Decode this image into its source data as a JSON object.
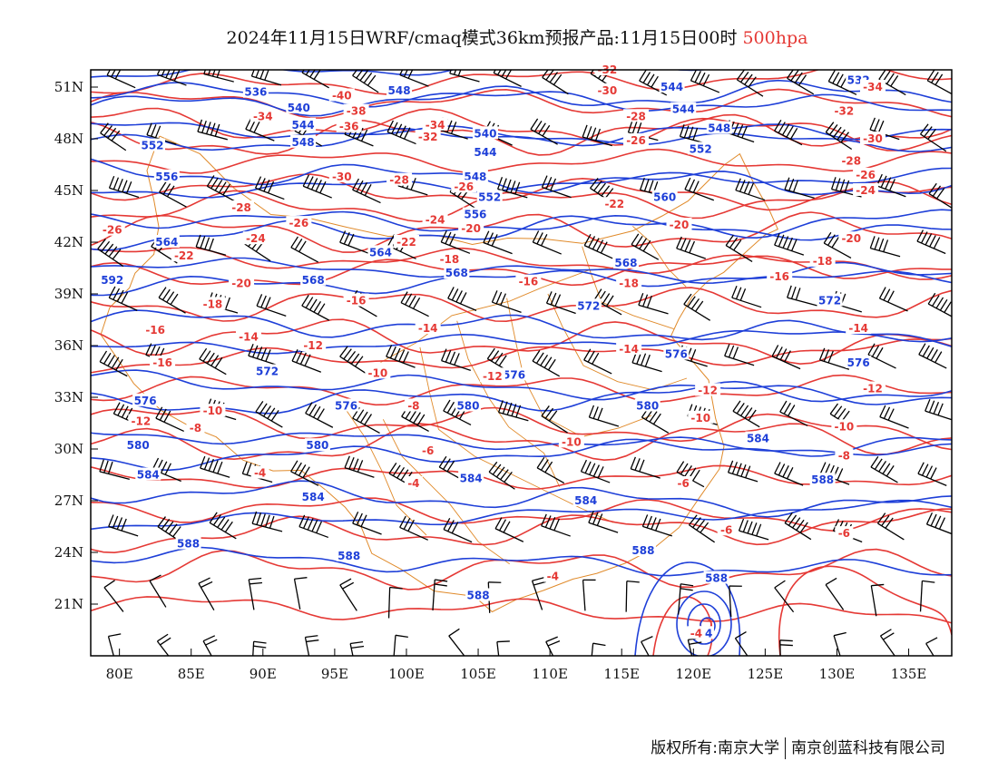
{
  "title": {
    "main": "2024年11月15日WRF/cmaq模式36km预报产品:11月15日00时",
    "level": "500hpa"
  },
  "colors": {
    "height": "#1e3fd8",
    "temp": "#e53935",
    "border": "#e08a2a",
    "wind": "#000000",
    "level_text": "#e53935"
  },
  "axes": {
    "lon_labels": [
      "80E",
      "85E",
      "90E",
      "95E",
      "100E",
      "105E",
      "110E",
      "115E",
      "120E",
      "125E",
      "130E",
      "135E"
    ],
    "lon_values": [
      80,
      85,
      90,
      95,
      100,
      105,
      110,
      115,
      120,
      125,
      130,
      135
    ],
    "lat_labels": [
      "51N",
      "48N",
      "45N",
      "42N",
      "39N",
      "36N",
      "33N",
      "30N",
      "27N",
      "24N",
      "21N"
    ],
    "lat_values": [
      51,
      48,
      45,
      42,
      39,
      36,
      33,
      30,
      27,
      24,
      21
    ],
    "lon_range": [
      78,
      138
    ],
    "lat_range": [
      18,
      52
    ]
  },
  "height_labels": [
    {
      "text": "536",
      "lon": 89.5,
      "lat": 50.7
    },
    {
      "text": "548",
      "lon": 99.5,
      "lat": 50.8
    },
    {
      "text": "540",
      "lon": 92.5,
      "lat": 49.8
    },
    {
      "text": "544",
      "lon": 92.8,
      "lat": 48.8
    },
    {
      "text": "548",
      "lon": 92.8,
      "lat": 47.8
    },
    {
      "text": "552",
      "lon": 82.3,
      "lat": 47.6
    },
    {
      "text": "540",
      "lon": 105.5,
      "lat": 48.3
    },
    {
      "text": "544",
      "lon": 105.5,
      "lat": 47.2
    },
    {
      "text": "548",
      "lon": 104.8,
      "lat": 45.8
    },
    {
      "text": "552",
      "lon": 105.8,
      "lat": 44.6
    },
    {
      "text": "556",
      "lon": 83.3,
      "lat": 45.8
    },
    {
      "text": "556",
      "lon": 104.8,
      "lat": 43.6
    },
    {
      "text": "564",
      "lon": 83.3,
      "lat": 42.0
    },
    {
      "text": "564",
      "lon": 98.2,
      "lat": 41.4
    },
    {
      "text": "568",
      "lon": 93.5,
      "lat": 39.8
    },
    {
      "text": "568",
      "lon": 103.5,
      "lat": 40.2
    },
    {
      "text": "568",
      "lon": 115.3,
      "lat": 40.8
    },
    {
      "text": "572",
      "lon": 112.7,
      "lat": 38.3
    },
    {
      "text": "572",
      "lon": 129.5,
      "lat": 38.6
    },
    {
      "text": "572",
      "lon": 90.3,
      "lat": 34.5
    },
    {
      "text": "576",
      "lon": 107.5,
      "lat": 34.3
    },
    {
      "text": "576",
      "lon": 118.8,
      "lat": 35.5
    },
    {
      "text": "576",
      "lon": 131.5,
      "lat": 35.0
    },
    {
      "text": "576",
      "lon": 81.8,
      "lat": 32.8
    },
    {
      "text": "576",
      "lon": 95.8,
      "lat": 32.5
    },
    {
      "text": "580",
      "lon": 104.3,
      "lat": 32.5
    },
    {
      "text": "580",
      "lon": 116.8,
      "lat": 32.5
    },
    {
      "text": "580",
      "lon": 81.3,
      "lat": 30.2
    },
    {
      "text": "580",
      "lon": 93.8,
      "lat": 30.2
    },
    {
      "text": "584",
      "lon": 82.0,
      "lat": 28.5
    },
    {
      "text": "584",
      "lon": 93.5,
      "lat": 27.2
    },
    {
      "text": "584",
      "lon": 104.5,
      "lat": 28.3
    },
    {
      "text": "584",
      "lon": 112.5,
      "lat": 27.0
    },
    {
      "text": "584",
      "lon": 124.5,
      "lat": 30.6
    },
    {
      "text": "588",
      "lon": 84.8,
      "lat": 24.5
    },
    {
      "text": "588",
      "lon": 96.0,
      "lat": 23.8
    },
    {
      "text": "588",
      "lon": 105.0,
      "lat": 21.5
    },
    {
      "text": "588",
      "lon": 116.5,
      "lat": 24.1
    },
    {
      "text": "588",
      "lon": 121.6,
      "lat": 22.5
    },
    {
      "text": "588",
      "lon": 129.0,
      "lat": 28.2
    },
    {
      "text": "592",
      "lon": 79.5,
      "lat": 39.8
    },
    {
      "text": "544",
      "lon": 118.5,
      "lat": 51.0
    },
    {
      "text": "544",
      "lon": 119.3,
      "lat": 49.7
    },
    {
      "text": "548",
      "lon": 121.8,
      "lat": 48.6
    },
    {
      "text": "552",
      "lon": 120.5,
      "lat": 47.4
    },
    {
      "text": "560",
      "lon": 118.0,
      "lat": 44.6
    },
    {
      "text": "532",
      "lon": 131.5,
      "lat": 51.4
    },
    {
      "text": "84",
      "lon": 120.8,
      "lat": 19.3
    }
  ],
  "temp_labels": [
    {
      "text": "-40",
      "lon": 95.5,
      "lat": 50.5
    },
    {
      "text": "-38",
      "lon": 96.5,
      "lat": 49.6
    },
    {
      "text": "-36",
      "lon": 96.0,
      "lat": 48.7
    },
    {
      "text": "-34",
      "lon": 90.0,
      "lat": 49.3
    },
    {
      "text": "-34",
      "lon": 102.0,
      "lat": 48.8
    },
    {
      "text": "-32",
      "lon": 101.5,
      "lat": 48.1
    },
    {
      "text": "-32",
      "lon": 114.0,
      "lat": 52.0
    },
    {
      "text": "-30",
      "lon": 114.0,
      "lat": 50.8
    },
    {
      "text": "-34",
      "lon": 132.5,
      "lat": 51.0
    },
    {
      "text": "-32",
      "lon": 130.5,
      "lat": 49.6
    },
    {
      "text": "-30",
      "lon": 132.5,
      "lat": 48.0
    },
    {
      "text": "-28",
      "lon": 116.0,
      "lat": 49.3
    },
    {
      "text": "-26",
      "lon": 116.0,
      "lat": 47.9
    },
    {
      "text": "-28",
      "lon": 131.0,
      "lat": 46.7
    },
    {
      "text": "-26",
      "lon": 132.0,
      "lat": 45.9
    },
    {
      "text": "-24",
      "lon": 132.0,
      "lat": 45.0
    },
    {
      "text": "-30",
      "lon": 95.5,
      "lat": 45.8
    },
    {
      "text": "-28",
      "lon": 99.5,
      "lat": 45.6
    },
    {
      "text": "-26",
      "lon": 104.0,
      "lat": 45.2
    },
    {
      "text": "-24",
      "lon": 102.0,
      "lat": 43.3
    },
    {
      "text": "-26",
      "lon": 92.5,
      "lat": 43.1
    },
    {
      "text": "-28",
      "lon": 88.5,
      "lat": 44.0
    },
    {
      "text": "-26",
      "lon": 79.5,
      "lat": 42.7
    },
    {
      "text": "-24",
      "lon": 89.5,
      "lat": 42.2
    },
    {
      "text": "-22",
      "lon": 84.5,
      "lat": 41.2
    },
    {
      "text": "-20",
      "lon": 104.5,
      "lat": 42.8
    },
    {
      "text": "-22",
      "lon": 100.0,
      "lat": 42.0
    },
    {
      "text": "-22",
      "lon": 114.5,
      "lat": 44.2
    },
    {
      "text": "-20",
      "lon": 119.0,
      "lat": 43.0
    },
    {
      "text": "-20",
      "lon": 131.0,
      "lat": 42.2
    },
    {
      "text": "-18",
      "lon": 129.0,
      "lat": 40.9
    },
    {
      "text": "-18",
      "lon": 103.0,
      "lat": 41.0
    },
    {
      "text": "-20",
      "lon": 88.5,
      "lat": 39.6
    },
    {
      "text": "-16",
      "lon": 108.5,
      "lat": 39.7
    },
    {
      "text": "-18",
      "lon": 115.5,
      "lat": 39.6
    },
    {
      "text": "-16",
      "lon": 126.0,
      "lat": 40.0
    },
    {
      "text": "-18",
      "lon": 86.5,
      "lat": 38.4
    },
    {
      "text": "-16",
      "lon": 96.5,
      "lat": 38.6
    },
    {
      "text": "-16",
      "lon": 82.5,
      "lat": 36.9
    },
    {
      "text": "-14",
      "lon": 89.0,
      "lat": 36.5
    },
    {
      "text": "-12",
      "lon": 93.5,
      "lat": 36.0
    },
    {
      "text": "-14",
      "lon": 101.5,
      "lat": 37.0
    },
    {
      "text": "-14",
      "lon": 115.5,
      "lat": 35.8
    },
    {
      "text": "-14",
      "lon": 131.5,
      "lat": 37.0
    },
    {
      "text": "-16",
      "lon": 83.0,
      "lat": 35.0
    },
    {
      "text": "-10",
      "lon": 98.0,
      "lat": 34.4
    },
    {
      "text": "-12",
      "lon": 106.0,
      "lat": 34.2
    },
    {
      "text": "-12",
      "lon": 121.0,
      "lat": 33.4
    },
    {
      "text": "-12",
      "lon": 132.5,
      "lat": 33.5
    },
    {
      "text": "-10",
      "lon": 86.5,
      "lat": 32.2
    },
    {
      "text": "-8",
      "lon": 100.5,
      "lat": 32.5
    },
    {
      "text": "-8",
      "lon": 85.3,
      "lat": 31.2
    },
    {
      "text": "-10",
      "lon": 120.5,
      "lat": 31.8
    },
    {
      "text": "-10",
      "lon": 130.5,
      "lat": 31.3
    },
    {
      "text": "-10",
      "lon": 111.5,
      "lat": 30.4
    },
    {
      "text": "-6",
      "lon": 101.5,
      "lat": 29.9
    },
    {
      "text": "-8",
      "lon": 130.5,
      "lat": 29.6
    },
    {
      "text": "-12",
      "lon": 81.5,
      "lat": 31.6
    },
    {
      "text": "-4",
      "lon": 89.8,
      "lat": 28.6
    },
    {
      "text": "-4",
      "lon": 100.5,
      "lat": 28.0
    },
    {
      "text": "-6",
      "lon": 119.3,
      "lat": 28.0
    },
    {
      "text": "-6",
      "lon": 122.3,
      "lat": 25.3
    },
    {
      "text": "-6",
      "lon": 130.5,
      "lat": 25.1
    },
    {
      "text": "-4",
      "lon": 110.2,
      "lat": 22.6
    },
    {
      "text": "-4",
      "lon": 120.2,
      "lat": 19.3
    }
  ],
  "footer": {
    "left": "版权所有:南京大学",
    "right": "南京创蓝科技有限公司"
  }
}
